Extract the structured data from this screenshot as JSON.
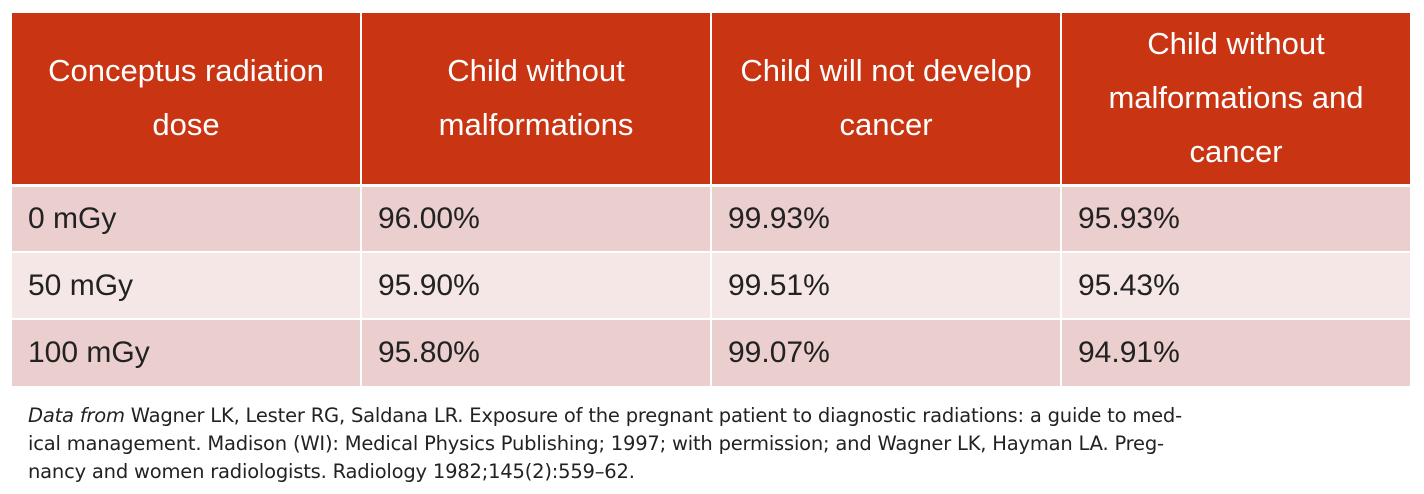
{
  "table": {
    "headers": [
      "Conceptus radiation dose",
      "Child without malformations",
      "Child will not develop cancer",
      "Child without malformations and cancer"
    ],
    "rows": [
      [
        "0 mGy",
        "96.00%",
        "99.93%",
        "95.93%"
      ],
      [
        "50 mGy",
        "95.90%",
        "99.51%",
        "95.43%"
      ],
      [
        "100 mGy",
        "95.80%",
        "99.07%",
        "94.91%"
      ]
    ]
  },
  "caption": {
    "lead": "Data from",
    "lines": [
      " Wagner LK, Lester RG, Saldana LR. Exposure of the pregnant patient to diagnostic radiations: a guide to med-",
      "ical management. Madison (WI): Medical Physics Publishing; 1997; with permission; and Wagner LK, Hayman LA. Preg-",
      "nancy and women radiologists. Radiology 1982;145(2):559–62."
    ]
  },
  "colors": {
    "header_bg": "#c93412",
    "row_dark": "#ebcfce",
    "row_light": "#f5e7e6"
  }
}
